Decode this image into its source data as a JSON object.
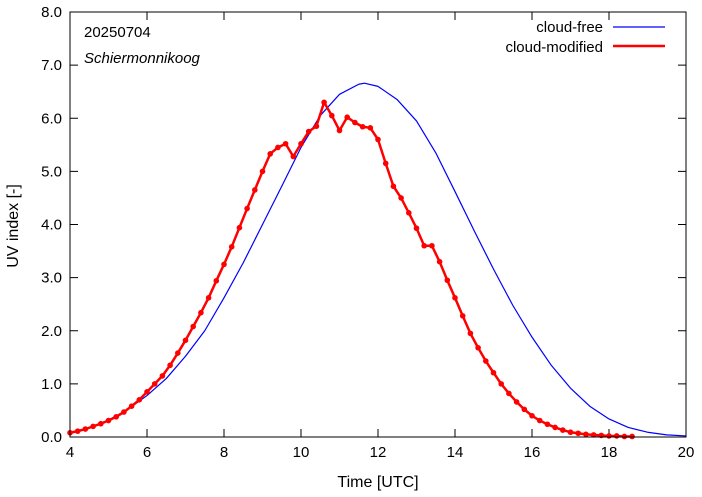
{
  "chart_data": {
    "type": "line",
    "title": "",
    "annotations": {
      "date": "20250704",
      "location": "Schiermonnikoog"
    },
    "xlabel": "Time  [UTC]",
    "ylabel": "UV index  [-]",
    "xlim": [
      4,
      20
    ],
    "ylim": [
      0,
      8
    ],
    "xticks": [
      4,
      6,
      8,
      10,
      12,
      14,
      16,
      18,
      20
    ],
    "xtick_labels": [
      "4",
      "6",
      "8",
      "10",
      "12",
      "14",
      "16",
      "18",
      "20"
    ],
    "yticks": [
      0,
      1,
      2,
      3,
      4,
      5,
      6,
      7,
      8
    ],
    "ytick_labels": [
      "0.0",
      "1.0",
      "2.0",
      "3.0",
      "4.0",
      "5.0",
      "6.0",
      "7.0",
      "8.0"
    ],
    "grid": false,
    "legend_position": "top-right",
    "series": [
      {
        "name": "cloud-free",
        "color": "#0000ff",
        "markers": false,
        "x": [
          4.0,
          4.5,
          5.0,
          5.5,
          6.0,
          6.5,
          7.0,
          7.5,
          8.0,
          8.5,
          9.0,
          9.5,
          10.0,
          10.5,
          11.0,
          11.5,
          11.65,
          12.0,
          12.5,
          13.0,
          13.5,
          14.0,
          14.5,
          15.0,
          15.5,
          16.0,
          16.5,
          17.0,
          17.5,
          18.0,
          18.5,
          19.0,
          19.5,
          20.0
        ],
        "y": [
          0.08,
          0.18,
          0.32,
          0.52,
          0.78,
          1.1,
          1.52,
          2.0,
          2.62,
          3.28,
          4.0,
          4.72,
          5.45,
          6.05,
          6.45,
          6.64,
          6.66,
          6.6,
          6.35,
          5.95,
          5.35,
          4.62,
          3.88,
          3.16,
          2.48,
          1.88,
          1.35,
          0.92,
          0.58,
          0.34,
          0.18,
          0.09,
          0.04,
          0.02
        ]
      },
      {
        "name": "cloud-modified",
        "color": "#ff0000",
        "markers": true,
        "x": [
          4.0,
          4.2,
          4.4,
          4.6,
          4.8,
          5.0,
          5.2,
          5.4,
          5.6,
          5.8,
          6.0,
          6.2,
          6.4,
          6.6,
          6.8,
          7.0,
          7.2,
          7.4,
          7.6,
          7.8,
          8.0,
          8.2,
          8.4,
          8.6,
          8.8,
          9.0,
          9.2,
          9.4,
          9.6,
          9.8,
          10.0,
          10.2,
          10.4,
          10.6,
          10.8,
          11.0,
          11.2,
          11.4,
          11.6,
          11.8,
          12.0,
          12.2,
          12.4,
          12.6,
          12.8,
          13.0,
          13.2,
          13.4,
          13.6,
          13.8,
          14.0,
          14.2,
          14.4,
          14.6,
          14.8,
          15.0,
          15.2,
          15.4,
          15.6,
          15.8,
          16.0,
          16.2,
          16.4,
          16.6,
          16.8,
          17.0,
          17.2,
          17.4,
          17.6,
          17.8,
          18.0,
          18.2,
          18.4,
          18.6
        ],
        "y": [
          0.08,
          0.11,
          0.15,
          0.2,
          0.25,
          0.31,
          0.38,
          0.47,
          0.58,
          0.7,
          0.85,
          1.0,
          1.15,
          1.35,
          1.58,
          1.82,
          2.08,
          2.34,
          2.62,
          2.94,
          3.25,
          3.58,
          3.94,
          4.3,
          4.65,
          5.0,
          5.33,
          5.45,
          5.52,
          5.28,
          5.52,
          5.75,
          5.85,
          6.3,
          6.05,
          5.77,
          6.02,
          5.92,
          5.84,
          5.82,
          5.6,
          5.15,
          4.72,
          4.5,
          4.22,
          3.93,
          3.6,
          3.6,
          3.3,
          2.95,
          2.62,
          2.28,
          1.95,
          1.68,
          1.43,
          1.21,
          1.0,
          0.82,
          0.66,
          0.52,
          0.4,
          0.31,
          0.24,
          0.18,
          0.13,
          0.09,
          0.07,
          0.05,
          0.04,
          0.03,
          0.02,
          0.02,
          0.01,
          0.01
        ]
      }
    ]
  }
}
